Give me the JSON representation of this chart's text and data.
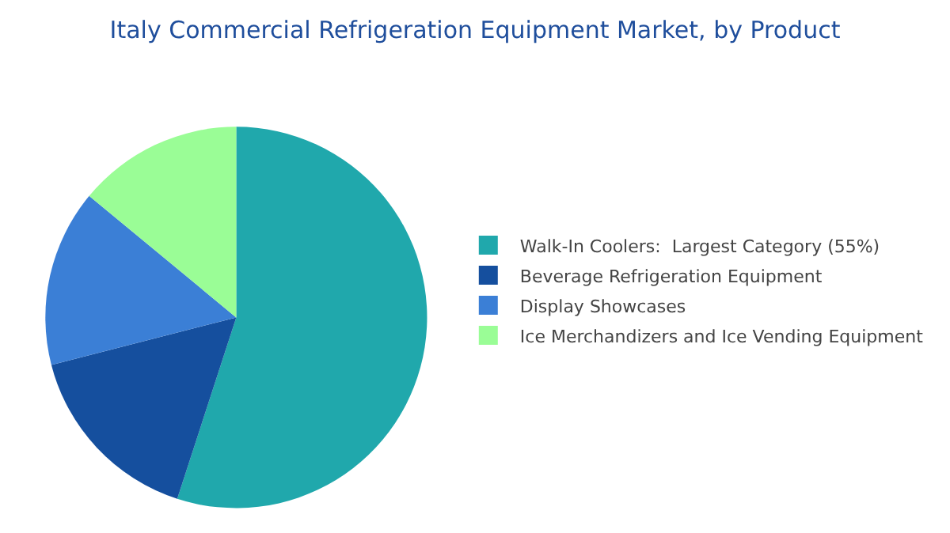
{
  "chart_data": {
    "type": "pie",
    "title": "Italy Commercial Refrigeration Equipment Market, by Product",
    "categories": [
      "Walk-In Coolers:  Largest Category (55%)",
      "Beverage Refrigeration Equipment",
      "Display Showcases",
      "Ice Merchandizers and Ice Vending Equipment"
    ],
    "values": [
      55,
      16,
      15,
      14
    ],
    "colors": [
      "#20a8ac",
      "#154f9e",
      "#3b7fd6",
      "#9afd96"
    ],
    "legend": "right"
  }
}
